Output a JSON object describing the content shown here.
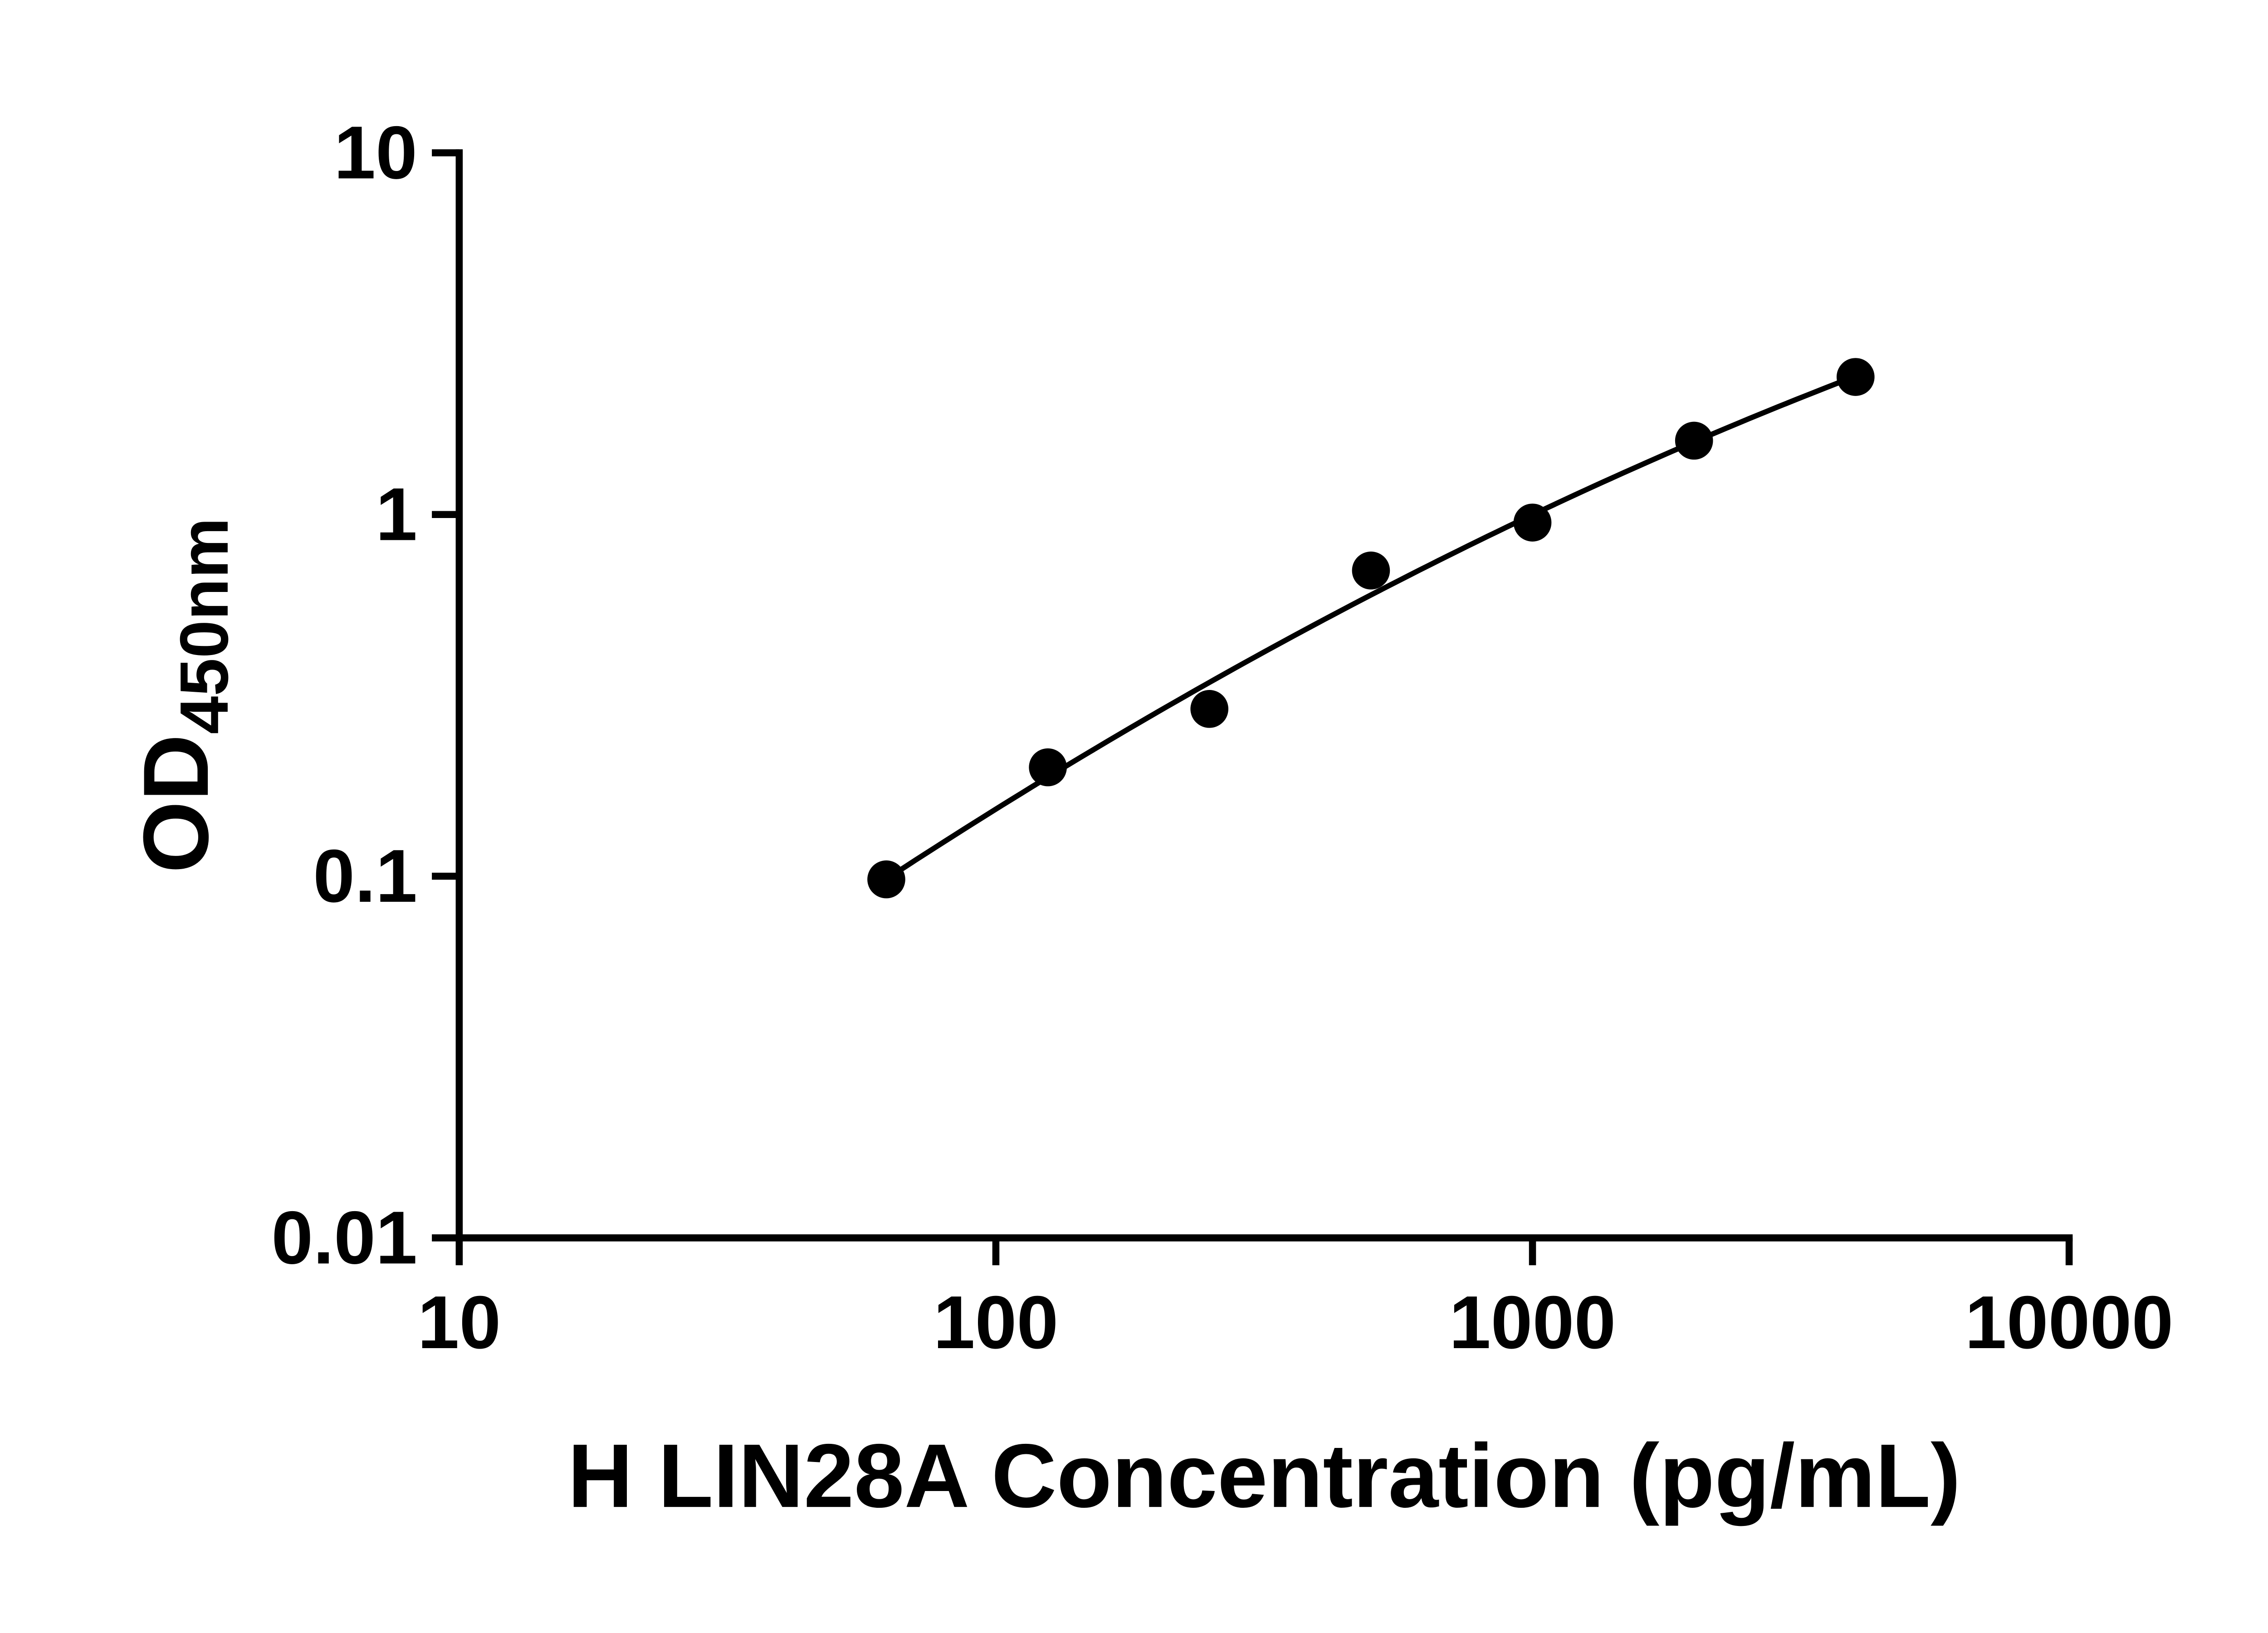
{
  "chart_data": {
    "type": "scatter",
    "title": "",
    "xlabel": "H LIN28A Concentration (pg/mL)",
    "ylabel_main": "OD",
    "ylabel_sub": "450nm",
    "x_scale": "log",
    "y_scale": "log",
    "xlim": [
      10,
      10000
    ],
    "ylim": [
      0.01,
      10
    ],
    "x_ticks": [
      10,
      100,
      1000,
      10000
    ],
    "x_tick_labels": [
      "10",
      "100",
      "1000",
      "10000"
    ],
    "y_ticks": [
      10,
      1,
      0.1,
      0.01
    ],
    "y_tick_labels": [
      "10",
      "1",
      "0.1",
      "0.01"
    ],
    "grid": false,
    "legend": "none",
    "axis_color": "#000000",
    "series": [
      {
        "name": "standard_curve",
        "marker": "circle",
        "color": "#000000",
        "fit": "smooth",
        "x": [
          62.5,
          125,
          250,
          500,
          1000,
          2000,
          4000
        ],
        "y": [
          0.098,
          0.2,
          0.29,
          0.7,
          0.95,
          1.6,
          2.4
        ]
      }
    ]
  }
}
